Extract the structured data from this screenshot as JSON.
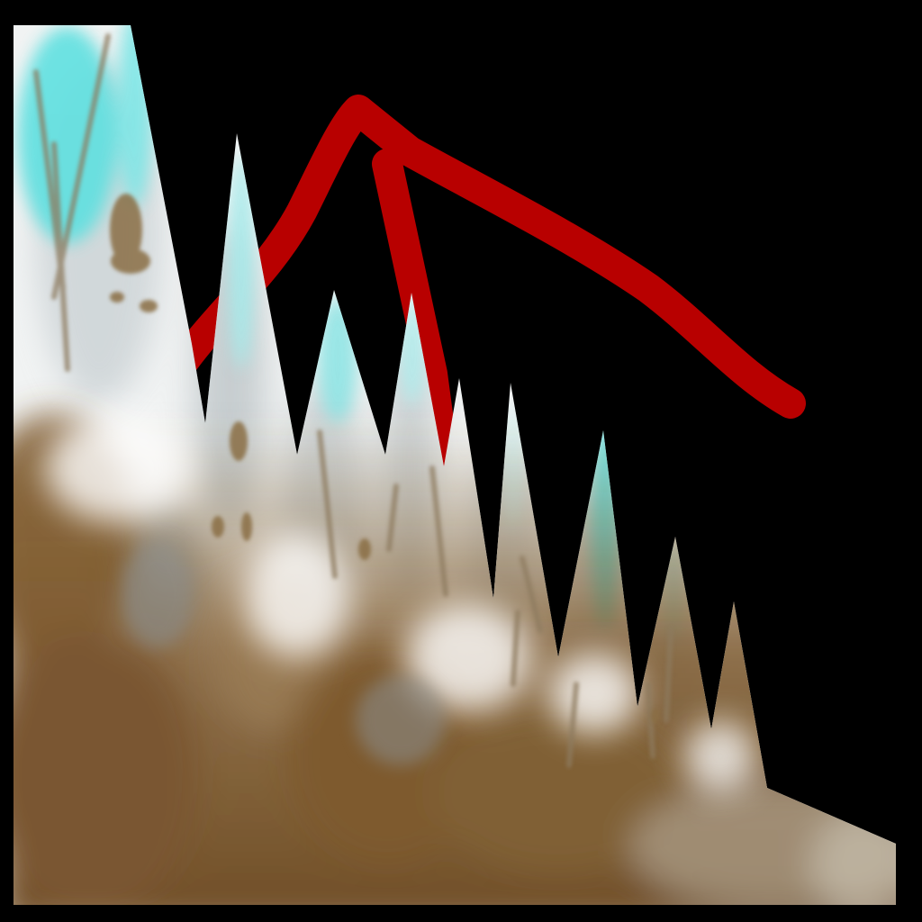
{
  "artwork": {
    "background_color": "#000000",
    "ice_color": "#f4f6f6",
    "ice_shadow_color": "#b9c1c4",
    "ice_highlight_color": "#5fe0e0",
    "earth_color": "#7e5a2e",
    "earth_light_color": "#a98b62",
    "arrow_color": "#b80000",
    "icon_names": [
      "ice-peaks-icon",
      "red-arrow-icon"
    ]
  }
}
